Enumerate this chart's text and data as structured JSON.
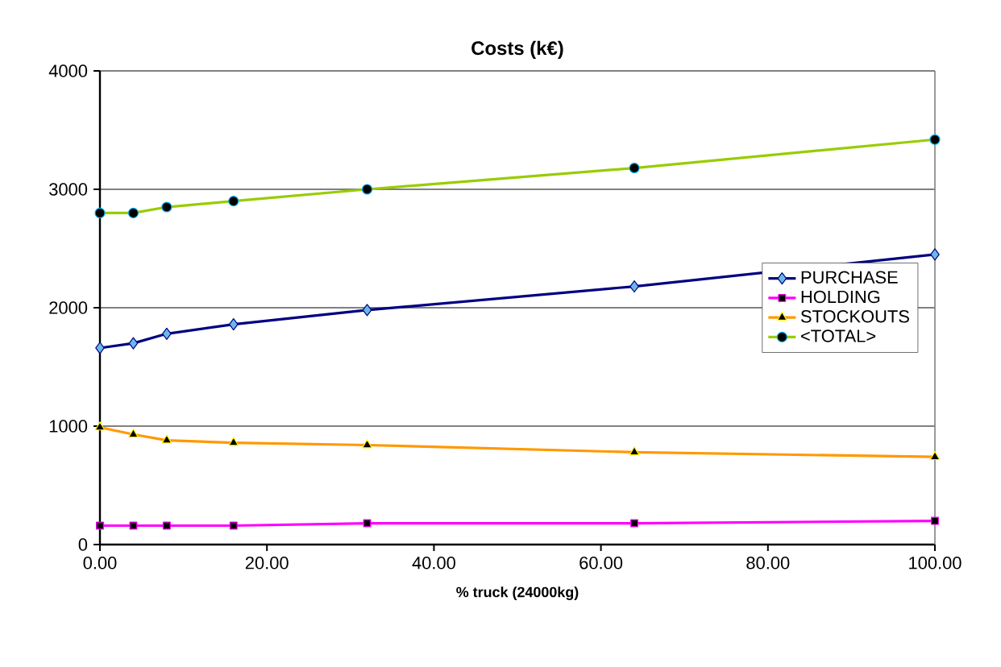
{
  "chart_data": {
    "type": "line",
    "title": "Costs (k€)",
    "xlabel": "% truck (24000kg)",
    "x": [
      0,
      4,
      8,
      16,
      32,
      64,
      100
    ],
    "series": [
      {
        "name": "PURCHASE",
        "color": "#000080",
        "marker": "diamond",
        "values": [
          1660,
          1700,
          1780,
          1860,
          1980,
          2180,
          2450
        ]
      },
      {
        "name": "HOLDING",
        "color": "#ff00ff",
        "marker": "square",
        "values": [
          160,
          160,
          160,
          160,
          180,
          180,
          200
        ]
      },
      {
        "name": "STOCKOUTS",
        "color": "#ff9900",
        "marker": "triangle",
        "values": [
          990,
          930,
          880,
          860,
          840,
          780,
          740
        ]
      },
      {
        "name": "<TOTAL>",
        "color": "#99cc00",
        "marker": "circle",
        "values": [
          2800,
          2800,
          2850,
          2900,
          3000,
          3180,
          3420
        ]
      }
    ],
    "xlim": [
      0,
      100
    ],
    "xticks": [
      {
        "value": 0,
        "label": "0.00"
      },
      {
        "value": 20,
        "label": "20.00"
      },
      {
        "value": 40,
        "label": "40.00"
      },
      {
        "value": 60,
        "label": "60.00"
      },
      {
        "value": 80,
        "label": "80.00"
      },
      {
        "value": 100,
        "label": "100.00"
      }
    ],
    "ylim": [
      0,
      4000
    ],
    "yticks": [
      0,
      1000,
      2000,
      3000,
      4000
    ],
    "grid": "y",
    "legend": "right",
    "line_style": "solid"
  }
}
